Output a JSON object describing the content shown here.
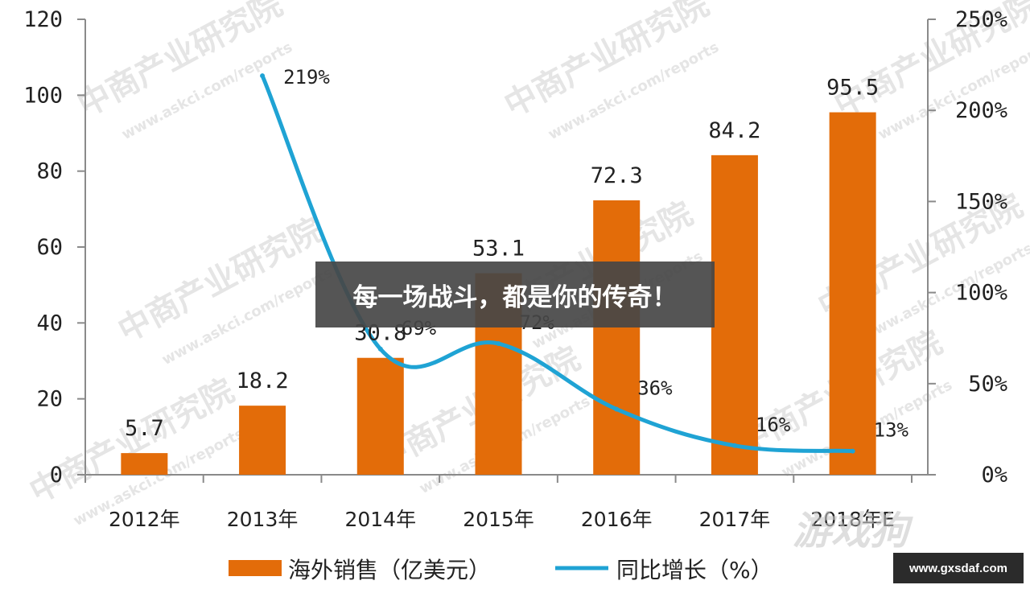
{
  "banner": {
    "text": "每一场战斗，都是你的传奇！"
  },
  "site_badge": {
    "text": "www.gxsdaf.com"
  },
  "corner_mark": {
    "text": "游戏狗"
  },
  "watermarks": [
    "中商产业研究院",
    "www.askci.com/reports"
  ],
  "colors": {
    "bar": "#e36c09",
    "line": "#1fa3d4",
    "axis": "#8a8a8a"
  },
  "chart_data": {
    "type": "bar",
    "categories": [
      "2012年",
      "2013年",
      "2014年",
      "2015年",
      "2016年",
      "2017年",
      "2018年E"
    ],
    "series": [
      {
        "name": "海外销售（亿美元）",
        "type": "bar",
        "axis": "left",
        "values": [
          5.7,
          18.2,
          30.8,
          53.1,
          72.3,
          84.2,
          95.5
        ],
        "labels": [
          "5.7",
          "18.2",
          "30.8",
          "53.1",
          "72.3",
          "84.2",
          "95.5"
        ]
      },
      {
        "name": "同比增长（%）",
        "type": "line",
        "axis": "right",
        "values": [
          null,
          219,
          69,
          72,
          36,
          16,
          13
        ],
        "labels": [
          "",
          "219%",
          "69%",
          "72%",
          "36%",
          "16%",
          "13%"
        ]
      }
    ],
    "y_left": {
      "ylim": [
        0,
        120
      ],
      "ticks": [
        "0",
        "20",
        "40",
        "60",
        "80",
        "100",
        "120"
      ]
    },
    "y_right": {
      "ylim": [
        0,
        250
      ],
      "ticks": [
        "0%",
        "50%",
        "100%",
        "150%",
        "200%",
        "250%"
      ]
    },
    "grid": false,
    "legend_position": "bottom"
  }
}
